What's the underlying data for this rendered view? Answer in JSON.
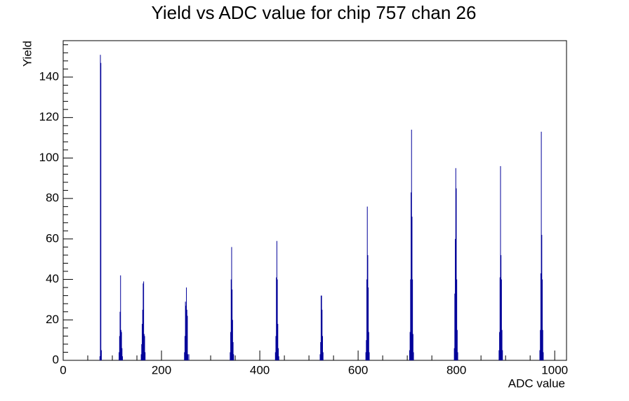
{
  "chart_data": {
    "type": "histogram",
    "title": "Yield vs ADC value for chip 757 chan 26",
    "x_label": "ADC value",
    "y_label": "Yield",
    "color": "#000099",
    "x": [
      74,
      75,
      76,
      77,
      113,
      114,
      115,
      116,
      117,
      118,
      119,
      120,
      158,
      159,
      160,
      161,
      162,
      163,
      164,
      165,
      166,
      246,
      247,
      248,
      249,
      250,
      251,
      252,
      253,
      255,
      339,
      340,
      341,
      342,
      343,
      344,
      345,
      346,
      431,
      432,
      433,
      434,
      435,
      436,
      437,
      438,
      522,
      523,
      524,
      525,
      526,
      527,
      528,
      615,
      616,
      617,
      618,
      619,
      620,
      621,
      622,
      704,
      705,
      706,
      707,
      708,
      709,
      710,
      711,
      712,
      795,
      796,
      797,
      798,
      799,
      800,
      801,
      802,
      886,
      887,
      888,
      889,
      890,
      891,
      892,
      893,
      969,
      970,
      971,
      972,
      973,
      974,
      975,
      976
    ],
    "values": [
      2,
      151,
      147,
      5,
      4,
      12,
      24,
      42,
      15,
      14,
      6,
      2,
      3,
      8,
      18,
      25,
      38,
      39,
      13,
      12,
      4,
      4,
      12,
      29,
      27,
      36,
      25,
      22,
      3,
      3,
      4,
      14,
      40,
      56,
      35,
      20,
      9,
      3,
      4,
      12,
      41,
      59,
      40,
      18,
      6,
      2,
      3,
      9,
      32,
      32,
      25,
      12,
      4,
      4,
      10,
      40,
      76,
      52,
      36,
      14,
      4,
      5,
      14,
      40,
      83,
      114,
      71,
      40,
      13,
      4,
      6,
      33,
      60,
      95,
      85,
      40,
      15,
      4,
      5,
      14,
      41,
      96,
      52,
      40,
      15,
      5,
      5,
      15,
      43,
      113,
      62,
      40,
      15,
      4
    ],
    "xlim": [
      0,
      1024
    ],
    "ylim": [
      0,
      158
    ],
    "xticks": [
      0,
      200,
      400,
      600,
      800,
      1000
    ],
    "yticks": [
      0,
      20,
      40,
      60,
      80,
      100,
      120,
      140
    ],
    "xminorticks": [
      50,
      100,
      150,
      250,
      300,
      350,
      450,
      500,
      550,
      650,
      700,
      750,
      850,
      900,
      950
    ],
    "yminorticks": [
      4,
      8,
      12,
      16,
      24,
      28,
      32,
      36,
      44,
      48,
      52,
      56,
      64,
      68,
      72,
      76,
      84,
      88,
      92,
      96,
      104,
      108,
      112,
      116,
      124,
      128,
      132,
      136,
      144,
      148,
      152,
      156
    ]
  }
}
